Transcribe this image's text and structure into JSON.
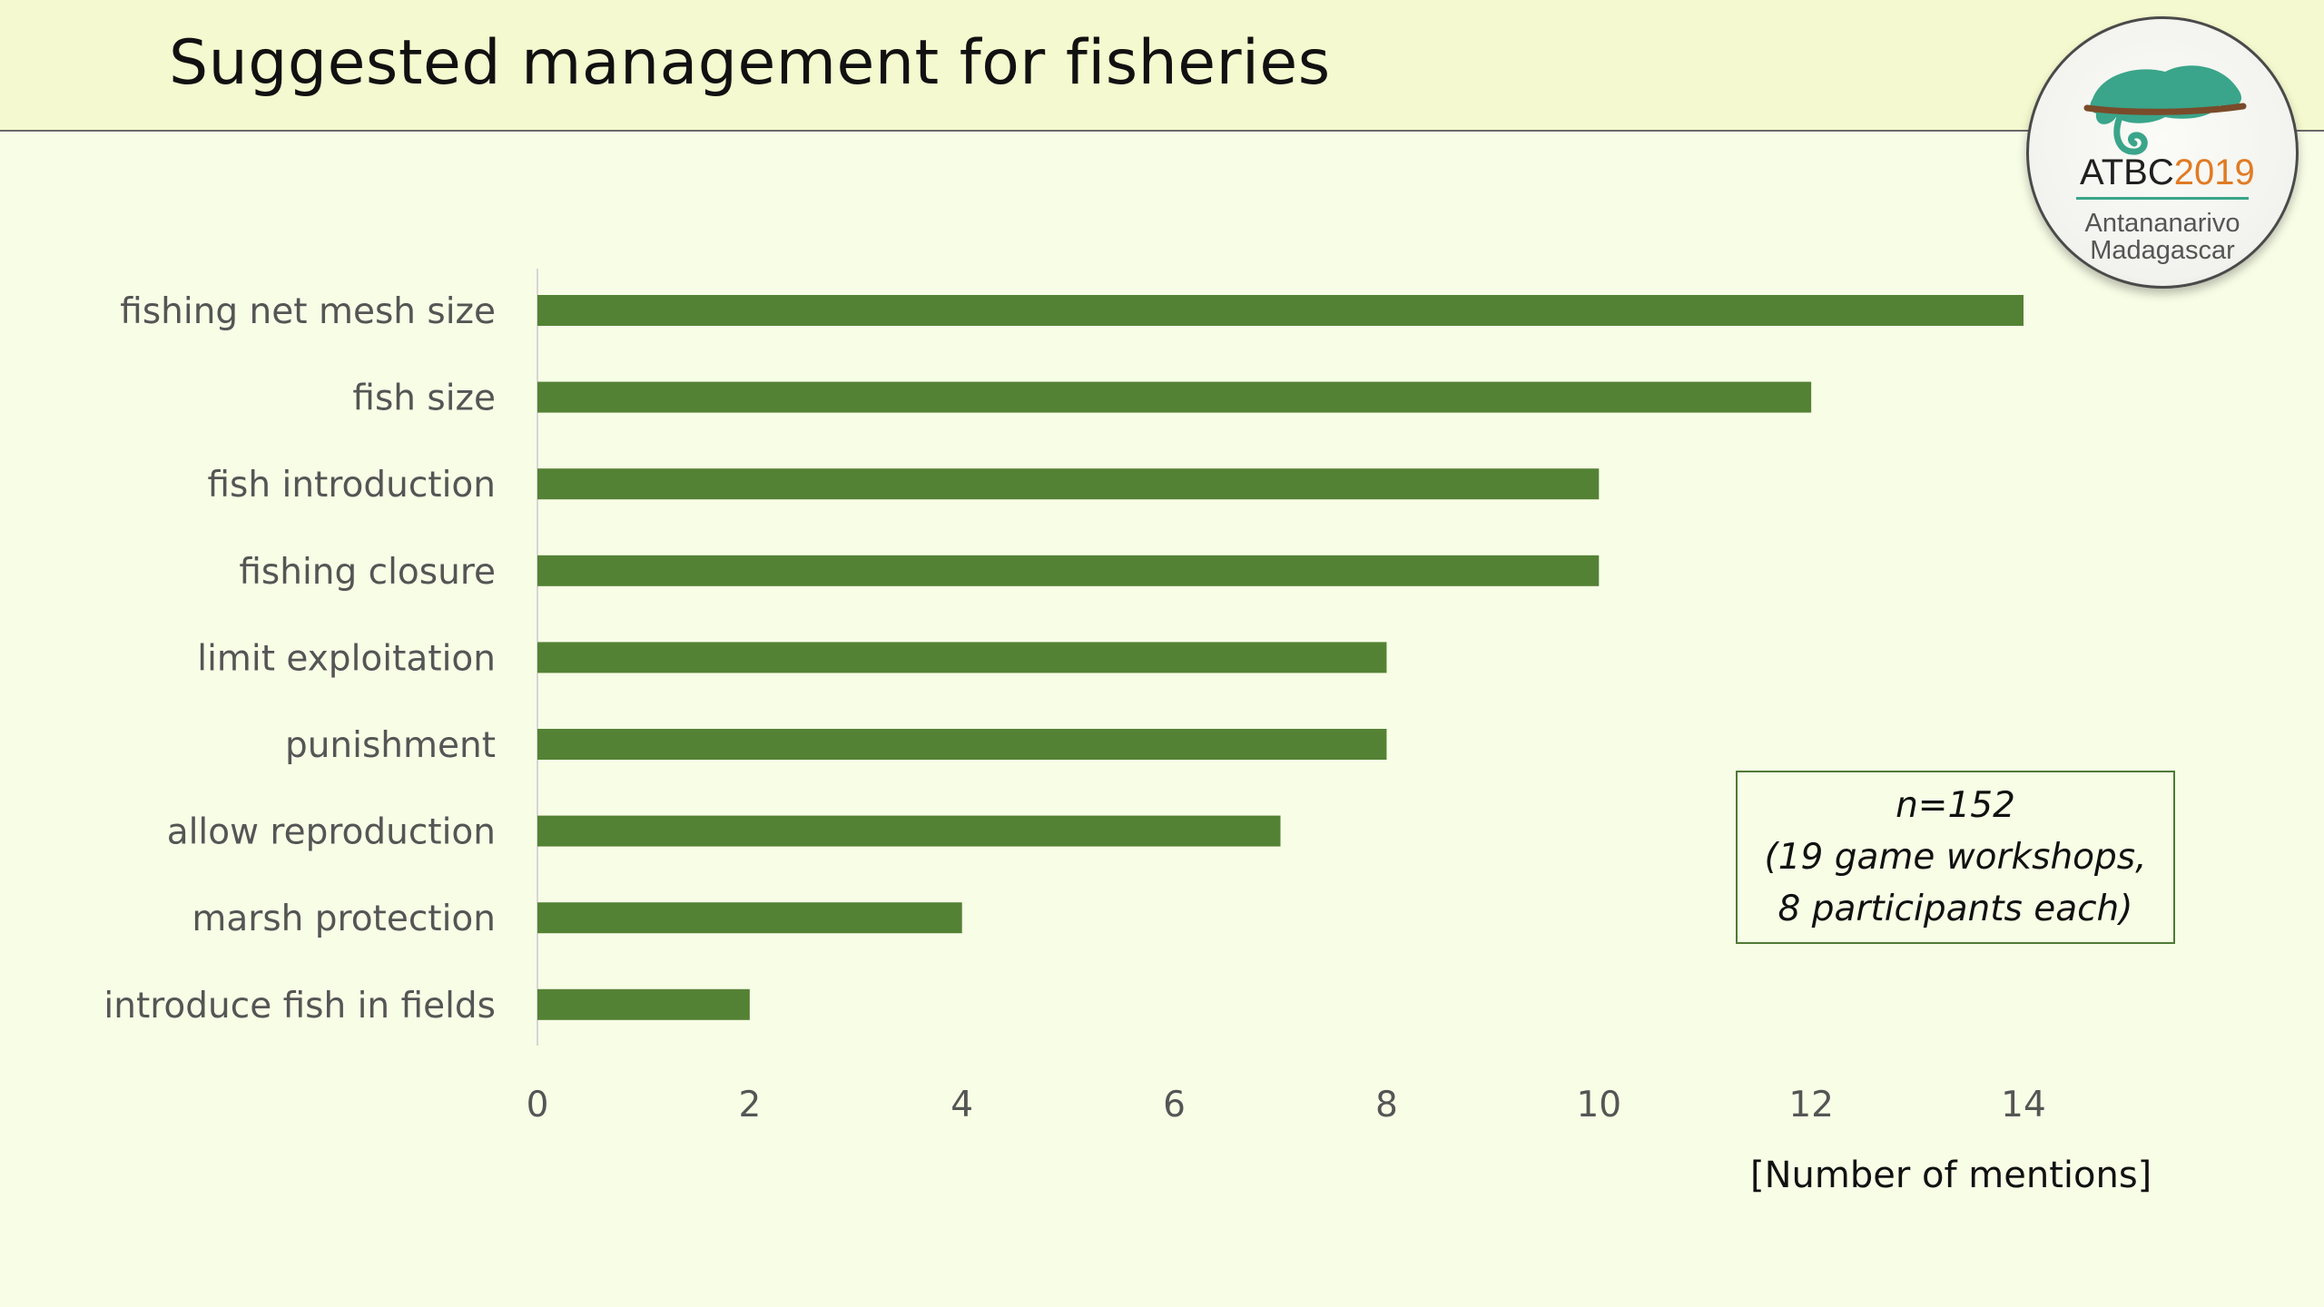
{
  "slide": {
    "title": "Suggested management for fisheries"
  },
  "logo": {
    "event": "ATBC",
    "year": "2019",
    "city": "Antananarivo",
    "country": "Madagascar",
    "colors": {
      "event": "#1f1f1f",
      "year": "#e07b24",
      "chameleon": "#3aa58a"
    }
  },
  "note": {
    "line1": "n=152",
    "line2": "(19 game workshops,",
    "line3": "8 participants each)"
  },
  "colors": {
    "background": "#f8fde6",
    "title_band": "#f5f9cf",
    "bar": "#548235"
  },
  "chart_data": {
    "type": "bar",
    "orientation": "horizontal",
    "categories": [
      "fishing net mesh size",
      "fish size",
      "fish introduction",
      "fishing closure",
      "limit exploitation",
      "punishment",
      "allow reproduction",
      "marsh protection",
      "introduce fish in fields"
    ],
    "values": [
      14,
      12,
      10,
      10,
      8,
      8,
      7,
      4,
      2
    ],
    "xlabel": "[Number of mentions]",
    "ylabel": "",
    "xlim": [
      0,
      14
    ],
    "xticks": [
      0,
      2,
      4,
      6,
      8,
      10,
      12,
      14
    ],
    "grid": false,
    "legend": "none"
  }
}
